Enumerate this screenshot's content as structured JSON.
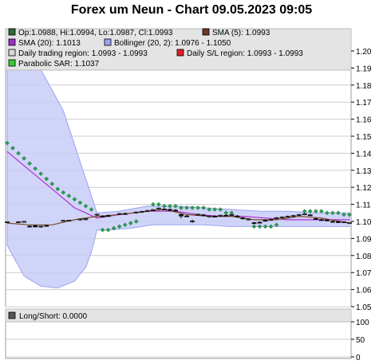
{
  "title": "Forex um Neun - Chart 09.05.2023 09:05",
  "legend": [
    {
      "text": "Op:1.0988, Hi:1.0994, Lo:1.0987, Cl:1.0993",
      "color": "#2f6b2f",
      "name": "ohlc"
    },
    {
      "text": "SMA (5): 1.0993",
      "color": "#6b3a1f",
      "name": "sma5"
    },
    {
      "text": "SMA (20): 1.1013",
      "color": "#9b30c8",
      "name": "sma20"
    },
    {
      "text": "Bollinger (20, 2): 1.0976 - 1.1050",
      "color": "#9aa3ee",
      "name": "bollinger"
    },
    {
      "text": "Daily trading region: 1.0993 - 1.0993",
      "color": "#d8d8d8",
      "name": "trading-region"
    },
    {
      "text": "Daily S/L region: 1.0993 - 1.0993",
      "color": "#e02020",
      "name": "sl-region"
    },
    {
      "text": "Parabolic SAR: 1.1037",
      "color": "#33cc33",
      "name": "psar"
    }
  ],
  "sub_legend": {
    "text": "Long/Short: 0.0000",
    "color": "#555555"
  },
  "colors": {
    "band_fill": "#c8ccf8",
    "band_line": "#9aa3ee",
    "sma20": "#b030d0",
    "sma5": "#7a4a2a",
    "psar": "#2aa050",
    "grid": "#cccccc",
    "legend_bg": "#e4e4e4"
  },
  "chart_data": [
    {
      "type": "candlestick",
      "title": "Forex um Neun - Chart 09.05.2023 09:05",
      "ylim": [
        1.05,
        1.205
      ],
      "yticks": [
        1.05,
        1.06,
        1.07,
        1.08,
        1.09,
        1.1,
        1.11,
        1.12,
        1.13,
        1.14,
        1.15,
        1.16,
        1.17,
        1.18,
        1.19,
        1.2
      ],
      "ytick_labels": [
        "1.05",
        "1.06",
        "1.07",
        "1.08",
        "1.09",
        "1.10",
        "1.11",
        "1.12",
        "1.13",
        "1.14",
        "1.15",
        "1.16",
        "1.17",
        "1.18",
        "1.19",
        "1.20"
      ],
      "n_bars": 62,
      "candles": [
        {
          "i": 0,
          "o": 1.0995,
          "h": 1.1,
          "l": 1.099,
          "c": 1.0998
        },
        {
          "i": 2,
          "o": 1.0996,
          "h": 1.1002,
          "l": 1.0992,
          "c": 1.0998
        },
        {
          "i": 3,
          "o": 1.0998,
          "h": 1.1003,
          "l": 1.0994,
          "c": 1.1
        },
        {
          "i": 4,
          "o": 1.0972,
          "h": 1.0978,
          "l": 1.0966,
          "c": 1.097
        },
        {
          "i": 5,
          "o": 1.0975,
          "h": 1.098,
          "l": 1.0965,
          "c": 1.0968
        },
        {
          "i": 6,
          "o": 1.097,
          "h": 1.0975,
          "l": 1.0963,
          "c": 1.0972
        },
        {
          "i": 7,
          "o": 1.0976,
          "h": 1.098,
          "l": 1.097,
          "c": 1.0972
        },
        {
          "i": 10,
          "o": 1.1004,
          "h": 1.1009,
          "l": 1.0999,
          "c": 1.1006
        },
        {
          "i": 11,
          "o": 1.1005,
          "h": 1.101,
          "l": 1.1,
          "c": 1.1007
        },
        {
          "i": 13,
          "o": 1.101,
          "h": 1.1016,
          "l": 1.1005,
          "c": 1.1014
        },
        {
          "i": 14,
          "o": 1.1012,
          "h": 1.1018,
          "l": 1.1007,
          "c": 1.1015
        },
        {
          "i": 16,
          "o": 1.104,
          "h": 1.1045,
          "l": 1.1032,
          "c": 1.1042
        },
        {
          "i": 17,
          "o": 1.103,
          "h": 1.1036,
          "l": 1.1024,
          "c": 1.1028
        },
        {
          "i": 18,
          "o": 1.1034,
          "h": 1.104,
          "l": 1.1028,
          "c": 1.103
        },
        {
          "i": 20,
          "o": 1.1042,
          "h": 1.105,
          "l": 1.1038,
          "c": 1.1046
        },
        {
          "i": 21,
          "o": 1.1046,
          "h": 1.1052,
          "l": 1.104,
          "c": 1.1044
        },
        {
          "i": 23,
          "o": 1.1052,
          "h": 1.1058,
          "l": 1.1046,
          "c": 1.1055
        },
        {
          "i": 24,
          "o": 1.1056,
          "h": 1.1062,
          "l": 1.105,
          "c": 1.1058
        },
        {
          "i": 25,
          "o": 1.106,
          "h": 1.1068,
          "l": 1.1055,
          "c": 1.1064
        },
        {
          "i": 26,
          "o": 1.1066,
          "h": 1.1072,
          "l": 1.106,
          "c": 1.1069
        },
        {
          "i": 27,
          "o": 1.1076,
          "h": 1.1082,
          "l": 1.107,
          "c": 1.1078
        },
        {
          "i": 28,
          "o": 1.1072,
          "h": 1.1078,
          "l": 1.1066,
          "c": 1.107
        },
        {
          "i": 29,
          "o": 1.107,
          "h": 1.1076,
          "l": 1.1062,
          "c": 1.1066
        },
        {
          "i": 30,
          "o": 1.1066,
          "h": 1.1072,
          "l": 1.106,
          "c": 1.1064
        },
        {
          "i": 31,
          "o": 1.104,
          "h": 1.1048,
          "l": 1.1018,
          "c": 1.1032
        },
        {
          "i": 32,
          "o": 1.1032,
          "h": 1.1038,
          "l": 1.1026,
          "c": 1.103
        },
        {
          "i": 33,
          "o": 1.1,
          "h": 1.101,
          "l": 1.0992,
          "c": 1.1002
        },
        {
          "i": 34,
          "o": 1.104,
          "h": 1.1046,
          "l": 1.1034,
          "c": 1.1042
        },
        {
          "i": 35,
          "o": 1.1038,
          "h": 1.1044,
          "l": 1.1032,
          "c": 1.1036
        },
        {
          "i": 36,
          "o": 1.1028,
          "h": 1.1034,
          "l": 1.1022,
          "c": 1.1032
        },
        {
          "i": 37,
          "o": 1.103,
          "h": 1.1036,
          "l": 1.1024,
          "c": 1.1026
        },
        {
          "i": 38,
          "o": 1.1034,
          "h": 1.104,
          "l": 1.1028,
          "c": 1.1036
        },
        {
          "i": 39,
          "o": 1.1036,
          "h": 1.1042,
          "l": 1.103,
          "c": 1.1034
        },
        {
          "i": 40,
          "o": 1.1038,
          "h": 1.1044,
          "l": 1.1032,
          "c": 1.104
        },
        {
          "i": 41,
          "o": 1.1032,
          "h": 1.1038,
          "l": 1.1026,
          "c": 1.1028
        },
        {
          "i": 42,
          "o": 1.102,
          "h": 1.1026,
          "l": 1.1012,
          "c": 1.1016
        },
        {
          "i": 43,
          "o": 1.1012,
          "h": 1.1018,
          "l": 1.1006,
          "c": 1.1014
        },
        {
          "i": 44,
          "o": 1.0992,
          "h": 1.0998,
          "l": 1.0985,
          "c": 1.099
        },
        {
          "i": 45,
          "o": 1.0995,
          "h": 1.1,
          "l": 1.0988,
          "c": 1.0992
        },
        {
          "i": 46,
          "o": 1.1006,
          "h": 1.1012,
          "l": 1.1,
          "c": 1.1004
        },
        {
          "i": 47,
          "o": 1.101,
          "h": 1.1016,
          "l": 1.1004,
          "c": 1.1012
        },
        {
          "i": 48,
          "o": 1.102,
          "h": 1.1026,
          "l": 1.1014,
          "c": 1.1022
        },
        {
          "i": 49,
          "o": 1.1024,
          "h": 1.103,
          "l": 1.1018,
          "c": 1.1026
        },
        {
          "i": 50,
          "o": 1.1028,
          "h": 1.1034,
          "l": 1.1022,
          "c": 1.103
        },
        {
          "i": 51,
          "o": 1.1032,
          "h": 1.1038,
          "l": 1.1026,
          "c": 1.1034
        },
        {
          "i": 52,
          "o": 1.1038,
          "h": 1.1044,
          "l": 1.1032,
          "c": 1.104
        },
        {
          "i": 53,
          "o": 1.1042,
          "h": 1.1048,
          "l": 1.1036,
          "c": 1.1044
        },
        {
          "i": 54,
          "o": 1.1038,
          "h": 1.1044,
          "l": 1.1032,
          "c": 1.1036
        },
        {
          "i": 55,
          "o": 1.1016,
          "h": 1.1022,
          "l": 1.101,
          "c": 1.1014
        },
        {
          "i": 56,
          "o": 1.101,
          "h": 1.1016,
          "l": 1.1004,
          "c": 1.1008
        },
        {
          "i": 57,
          "o": 1.1008,
          "h": 1.1014,
          "l": 1.1002,
          "c": 1.1006
        },
        {
          "i": 58,
          "o": 1.1,
          "h": 1.1006,
          "l": 1.0994,
          "c": 1.0998
        },
        {
          "i": 59,
          "o": 1.0998,
          "h": 1.1004,
          "l": 1.0992,
          "c": 1.0996
        },
        {
          "i": 60,
          "o": 1.0996,
          "h": 1.1002,
          "l": 1.099,
          "c": 1.0998
        },
        {
          "i": 61,
          "o": 1.0988,
          "h": 1.0994,
          "l": 1.0987,
          "c": 1.0993
        }
      ],
      "bollinger_upper": [
        [
          0,
          1.205
        ],
        [
          5,
          1.195
        ],
        [
          10,
          1.165
        ],
        [
          14,
          1.125
        ],
        [
          16,
          1.105
        ],
        [
          20,
          1.106
        ],
        [
          25,
          1.109
        ],
        [
          30,
          1.109
        ],
        [
          35,
          1.108
        ],
        [
          40,
          1.107
        ],
        [
          45,
          1.106
        ],
        [
          50,
          1.106
        ],
        [
          55,
          1.105
        ],
        [
          61,
          1.105
        ]
      ],
      "bollinger_lower": [
        [
          0,
          1.086
        ],
        [
          3,
          1.068
        ],
        [
          6,
          1.062
        ],
        [
          9,
          1.061
        ],
        [
          12,
          1.065
        ],
        [
          14,
          1.073
        ],
        [
          15,
          1.082
        ],
        [
          16,
          1.095
        ],
        [
          18,
          1.095
        ],
        [
          22,
          1.096
        ],
        [
          26,
          1.098
        ],
        [
          30,
          1.098
        ],
        [
          35,
          1.098
        ],
        [
          40,
          1.097
        ],
        [
          45,
          1.097
        ],
        [
          50,
          1.097
        ],
        [
          55,
          1.097
        ],
        [
          61,
          1.097
        ]
      ],
      "sma20": [
        [
          0,
          1.141
        ],
        [
          4,
          1.13
        ],
        [
          8,
          1.119
        ],
        [
          12,
          1.108
        ],
        [
          16,
          1.102
        ],
        [
          20,
          1.104
        ],
        [
          25,
          1.106
        ],
        [
          30,
          1.106
        ],
        [
          34,
          1.104
        ],
        [
          38,
          1.103
        ],
        [
          42,
          1.103
        ],
        [
          46,
          1.102
        ],
        [
          50,
          1.101
        ],
        [
          54,
          1.101
        ],
        [
          58,
          1.101
        ],
        [
          61,
          1.101
        ]
      ],
      "sma5": [
        [
          0,
          1.099
        ],
        [
          4,
          1.098
        ],
        [
          8,
          1.098
        ],
        [
          12,
          1.101
        ],
        [
          16,
          1.103
        ],
        [
          20,
          1.104
        ],
        [
          25,
          1.106
        ],
        [
          28,
          1.107
        ],
        [
          32,
          1.104
        ],
        [
          36,
          1.103
        ],
        [
          40,
          1.103
        ],
        [
          44,
          1.101
        ],
        [
          48,
          1.101
        ],
        [
          52,
          1.103
        ],
        [
          56,
          1.102
        ],
        [
          61,
          1.099
        ]
      ],
      "psar": [
        [
          0,
          1.146
        ],
        [
          1,
          1.143
        ],
        [
          2,
          1.14
        ],
        [
          3,
          1.137
        ],
        [
          4,
          1.134
        ],
        [
          5,
          1.131
        ],
        [
          6,
          1.128
        ],
        [
          7,
          1.125
        ],
        [
          8,
          1.122
        ],
        [
          9,
          1.119
        ],
        [
          10,
          1.117
        ],
        [
          11,
          1.115
        ],
        [
          12,
          1.113
        ],
        [
          13,
          1.111
        ],
        [
          14,
          1.109
        ],
        [
          15,
          1.107
        ],
        [
          17,
          1.095
        ],
        [
          18,
          1.095
        ],
        [
          19,
          1.096
        ],
        [
          20,
          1.097
        ],
        [
          21,
          1.098
        ],
        [
          22,
          1.099
        ],
        [
          23,
          1.1
        ],
        [
          26,
          1.11
        ],
        [
          27,
          1.11
        ],
        [
          28,
          1.109
        ],
        [
          29,
          1.109
        ],
        [
          30,
          1.109
        ],
        [
          31,
          1.108
        ],
        [
          32,
          1.108
        ],
        [
          33,
          1.108
        ],
        [
          34,
          1.108
        ],
        [
          35,
          1.108
        ],
        [
          36,
          1.107
        ],
        [
          37,
          1.107
        ],
        [
          38,
          1.107
        ],
        [
          39,
          1.105
        ],
        [
          40,
          1.105
        ],
        [
          44,
          1.097
        ],
        [
          45,
          1.097
        ],
        [
          46,
          1.097
        ],
        [
          47,
          1.097
        ],
        [
          48,
          1.098
        ],
        [
          53,
          1.106
        ],
        [
          54,
          1.106
        ],
        [
          55,
          1.106
        ],
        [
          56,
          1.106
        ],
        [
          57,
          1.105
        ],
        [
          58,
          1.105
        ],
        [
          59,
          1.105
        ],
        [
          60,
          1.104
        ],
        [
          61,
          1.104
        ]
      ]
    },
    {
      "type": "line",
      "title": "Long/Short: 0.0000",
      "ylim": [
        0,
        110
      ],
      "yticks": [
        0,
        50,
        100
      ],
      "ytick_labels": [
        "0",
        "50",
        "100"
      ],
      "values": []
    }
  ]
}
